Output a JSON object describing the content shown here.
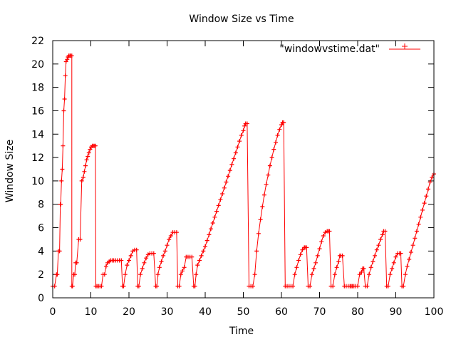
{
  "chart_data": {
    "type": "line",
    "title": "Window Size vs Time",
    "xlabel": "Time",
    "ylabel": "Window Size",
    "xlim": [
      0,
      100
    ],
    "ylim": [
      0,
      22
    ],
    "xticks": [
      0,
      10,
      20,
      30,
      40,
      50,
      60,
      70,
      80,
      90,
      100
    ],
    "yticks": [
      0,
      2,
      4,
      6,
      8,
      10,
      12,
      14,
      16,
      18,
      20,
      22
    ],
    "grid": false,
    "legend_position": "top-right",
    "marker": "plus",
    "colors": {
      "series": "#ff0000",
      "axes": "#000000"
    },
    "series": [
      {
        "name": "\"windowvstime.dat\"",
        "x": [
          0,
          0.5,
          1,
          1.2,
          1.5,
          1.8,
          2.0,
          2.1,
          2.3,
          2.5,
          2.7,
          2.9,
          3.1,
          3.3,
          3.5,
          3.8,
          4.0,
          4.2,
          4.5,
          4.7,
          5.0,
          5.0,
          5.2,
          5.5,
          5.8,
          6.0,
          6.3,
          6.8,
          7.2,
          7.6,
          8.0,
          8.3,
          8.6,
          8.9,
          9.2,
          9.5,
          9.8,
          10.1,
          10.4,
          10.7,
          11.0,
          11.2,
          11.3,
          11.6,
          12.0,
          12.4,
          12.8,
          13.2,
          13.6,
          14.0,
          14.4,
          14.8,
          15.2,
          15.6,
          16.0,
          16.5,
          17.0,
          17.5,
          18.0,
          18.3,
          18.6,
          19.0,
          19.5,
          20.0,
          20.5,
          21.0,
          21.5,
          22.0,
          22.3,
          22.6,
          23.0,
          23.5,
          24.0,
          24.5,
          25.0,
          25.5,
          26.0,
          26.5,
          27.0,
          27.3,
          27.6,
          28.0,
          28.5,
          29.0,
          29.5,
          30.0,
          30.5,
          31.0,
          31.5,
          32.0,
          32.5,
          32.8,
          33.2,
          33.6,
          34.0,
          34.5,
          35.0,
          35.5,
          36.0,
          36.5,
          37.0,
          37.3,
          37.6,
          38.0,
          38.5,
          39.0,
          39.5,
          40.0,
          40.5,
          41.0,
          41.5,
          42.0,
          42.5,
          43.0,
          43.5,
          44.0,
          44.5,
          45.0,
          45.5,
          46.0,
          46.5,
          47.0,
          47.5,
          48.0,
          48.5,
          49.0,
          49.5,
          50.0,
          50.3,
          50.6,
          51.0,
          51.5,
          52.0,
          52.5,
          53.0,
          53.5,
          54.0,
          54.5,
          55.0,
          55.5,
          56.0,
          56.5,
          57.0,
          57.5,
          58.0,
          58.5,
          59.0,
          59.5,
          60.0,
          60.3,
          60.6,
          61.0,
          61.5,
          62.0,
          62.5,
          63.0,
          63.5,
          64.0,
          64.5,
          65.0,
          65.5,
          66.0,
          66.2,
          66.6,
          67.0,
          67.5,
          68.0,
          68.5,
          69.0,
          69.5,
          70.0,
          70.5,
          71.0,
          71.5,
          72.0,
          72.3,
          72.6,
          73.0,
          73.5,
          74.0,
          74.5,
          75.0,
          75.3,
          75.6,
          76.0,
          76.5,
          77.0,
          77.5,
          78.0,
          78.3,
          78.6,
          79.0,
          79.5,
          80.0,
          80.5,
          81.0,
          81.3,
          81.6,
          82.0,
          82.5,
          83.0,
          83.5,
          84.0,
          84.5,
          85.0,
          85.5,
          86.0,
          86.5,
          86.8,
          87.2,
          87.6,
          88.0,
          88.5,
          89.0,
          89.5,
          90.0,
          90.5,
          91.0,
          91.3,
          91.6,
          92.0,
          92.5,
          93.0,
          93.5,
          94.0,
          94.5,
          95.0,
          95.5,
          96.0,
          96.5,
          97.0,
          97.5,
          98.0,
          98.5,
          99.0,
          99.5,
          100.0
        ],
        "values": [
          1,
          1,
          2,
          2,
          4,
          4,
          8,
          8,
          10,
          11,
          13,
          16,
          17,
          19,
          20.2,
          20.4,
          20.6,
          20.7,
          20.7,
          20.7,
          20.7,
          1,
          1,
          2,
          2,
          3,
          3,
          5,
          5,
          10,
          10.3,
          10.8,
          11.3,
          11.8,
          12.1,
          12.4,
          12.7,
          12.9,
          13,
          13,
          13,
          13,
          1,
          1,
          1,
          1,
          1,
          2,
          2,
          2.7,
          3,
          3.1,
          3.2,
          3.2,
          3.2,
          3.2,
          3.2,
          3.2,
          3.2,
          1,
          1,
          2,
          2.8,
          3.2,
          3.6,
          4.0,
          4.1,
          4.1,
          1,
          1,
          2,
          2.5,
          3.0,
          3.4,
          3.7,
          3.8,
          3.8,
          3.8,
          1,
          1,
          2,
          2.6,
          3.1,
          3.6,
          4.0,
          4.5,
          5.0,
          5.3,
          5.6,
          5.6,
          5.6,
          1,
          1,
          2,
          2.3,
          2.6,
          3.5,
          3.5,
          3.5,
          3.5,
          1,
          1,
          2,
          2.8,
          3.2,
          3.6,
          4.0,
          4.4,
          4.9,
          5.4,
          5.9,
          6.4,
          6.9,
          7.4,
          7.9,
          8.4,
          8.9,
          9.4,
          9.9,
          10.4,
          10.9,
          11.4,
          11.9,
          12.4,
          12.9,
          13.4,
          13.9,
          14.3,
          14.7,
          14.9,
          14.9,
          1,
          1,
          1,
          2,
          4,
          5.5,
          6.7,
          7.8,
          8.8,
          9.7,
          10.5,
          11.3,
          12.0,
          12.7,
          13.3,
          13.9,
          14.4,
          14.8,
          15.0,
          15.0,
          1,
          1,
          1,
          1,
          1,
          2,
          2.6,
          3.2,
          3.7,
          4.1,
          4.3,
          4.3,
          4.3,
          1,
          1,
          2,
          2.5,
          3.0,
          3.6,
          4.2,
          4.8,
          5.3,
          5.6,
          5.7,
          5.7,
          5.7,
          1,
          1,
          2,
          2.6,
          3.1,
          3.6,
          3.6,
          3.6,
          1,
          1,
          1,
          1,
          1,
          1,
          1,
          1,
          1,
          2,
          2.2,
          2.5,
          2.5,
          1,
          1,
          2,
          2.6,
          3.1,
          3.6,
          4.1,
          4.5,
          5.0,
          5.4,
          5.7,
          5.7,
          1,
          1,
          2,
          2.5,
          3.0,
          3.5,
          3.8,
          3.8,
          3.8,
          1,
          1,
          2,
          2.7,
          3.3,
          3.9,
          4.5,
          5.1,
          5.7,
          6.3,
          6.9,
          7.5,
          8.1,
          8.7,
          9.3,
          9.9,
          10.3,
          10.6
        ]
      }
    ]
  }
}
